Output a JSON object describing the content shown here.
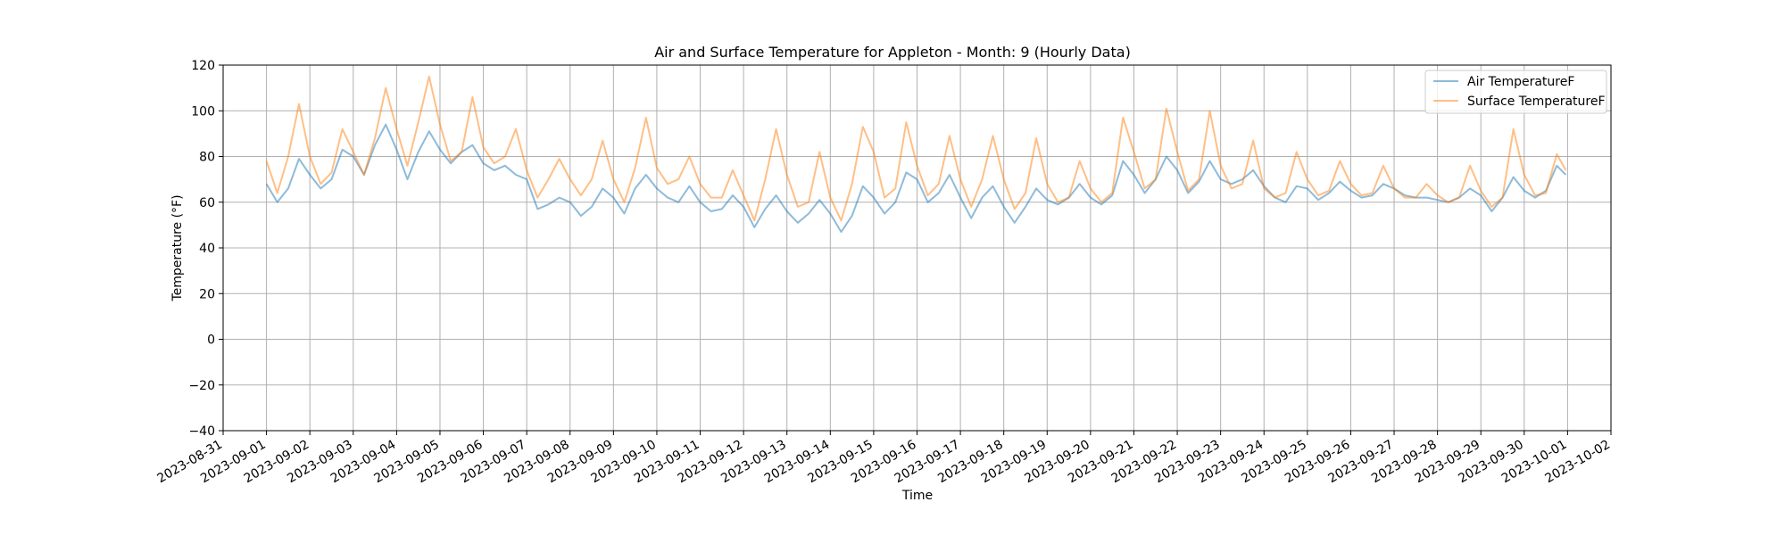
{
  "chart_data": {
    "type": "line",
    "title": "Air and Surface Temperature for Appleton - Month: 9 (Hourly Data)",
    "xlabel": "Time",
    "ylabel": "Temperature (°F)",
    "ylim": [
      -40,
      120
    ],
    "xlim": [
      "2023-08-31",
      "2023-10-02"
    ],
    "x_tick_labels": [
      "2023-08-31",
      "2023-09-01",
      "2023-09-02",
      "2023-09-03",
      "2023-09-04",
      "2023-09-05",
      "2023-09-06",
      "2023-09-07",
      "2023-09-08",
      "2023-09-09",
      "2023-09-10",
      "2023-09-11",
      "2023-09-12",
      "2023-09-13",
      "2023-09-14",
      "2023-09-15",
      "2023-09-16",
      "2023-09-17",
      "2023-09-18",
      "2023-09-19",
      "2023-09-20",
      "2023-09-21",
      "2023-09-22",
      "2023-09-23",
      "2023-09-24",
      "2023-09-25",
      "2023-09-26",
      "2023-09-27",
      "2023-09-28",
      "2023-09-29",
      "2023-09-30",
      "2023-10-01",
      "2023-10-02"
    ],
    "y_ticks": [
      -40,
      -20,
      0,
      20,
      40,
      60,
      80,
      100,
      120
    ],
    "grid": true,
    "legend_position": "top-right",
    "x": [
      "2023-09-01 00:00",
      "2023-09-01 06:00",
      "2023-09-01 12:00",
      "2023-09-01 18:00",
      "2023-09-02 00:00",
      "2023-09-02 06:00",
      "2023-09-02 12:00",
      "2023-09-02 18:00",
      "2023-09-03 00:00",
      "2023-09-03 06:00",
      "2023-09-03 12:00",
      "2023-09-03 18:00",
      "2023-09-04 00:00",
      "2023-09-04 06:00",
      "2023-09-04 12:00",
      "2023-09-04 18:00",
      "2023-09-05 00:00",
      "2023-09-05 06:00",
      "2023-09-05 12:00",
      "2023-09-05 18:00",
      "2023-09-06 00:00",
      "2023-09-06 06:00",
      "2023-09-06 12:00",
      "2023-09-06 18:00",
      "2023-09-07 00:00",
      "2023-09-07 06:00",
      "2023-09-07 12:00",
      "2023-09-07 18:00",
      "2023-09-08 00:00",
      "2023-09-08 06:00",
      "2023-09-08 12:00",
      "2023-09-08 18:00",
      "2023-09-09 00:00",
      "2023-09-09 06:00",
      "2023-09-09 12:00",
      "2023-09-09 18:00",
      "2023-09-10 00:00",
      "2023-09-10 06:00",
      "2023-09-10 12:00",
      "2023-09-10 18:00",
      "2023-09-11 00:00",
      "2023-09-11 06:00",
      "2023-09-11 12:00",
      "2023-09-11 18:00",
      "2023-09-12 00:00",
      "2023-09-12 06:00",
      "2023-09-12 12:00",
      "2023-09-12 18:00",
      "2023-09-13 00:00",
      "2023-09-13 06:00",
      "2023-09-13 12:00",
      "2023-09-13 18:00",
      "2023-09-14 00:00",
      "2023-09-14 06:00",
      "2023-09-14 12:00",
      "2023-09-14 18:00",
      "2023-09-15 00:00",
      "2023-09-15 06:00",
      "2023-09-15 12:00",
      "2023-09-15 18:00",
      "2023-09-16 00:00",
      "2023-09-16 06:00",
      "2023-09-16 12:00",
      "2023-09-16 18:00",
      "2023-09-17 00:00",
      "2023-09-17 06:00",
      "2023-09-17 12:00",
      "2023-09-17 18:00",
      "2023-09-18 00:00",
      "2023-09-18 06:00",
      "2023-09-18 12:00",
      "2023-09-18 18:00",
      "2023-09-19 00:00",
      "2023-09-19 06:00",
      "2023-09-19 12:00",
      "2023-09-19 18:00",
      "2023-09-20 00:00",
      "2023-09-20 06:00",
      "2023-09-20 12:00",
      "2023-09-20 18:00",
      "2023-09-21 00:00",
      "2023-09-21 06:00",
      "2023-09-21 12:00",
      "2023-09-21 18:00",
      "2023-09-22 00:00",
      "2023-09-22 06:00",
      "2023-09-22 12:00",
      "2023-09-22 18:00",
      "2023-09-23 00:00",
      "2023-09-23 06:00",
      "2023-09-23 12:00",
      "2023-09-23 18:00",
      "2023-09-24 00:00",
      "2023-09-24 06:00",
      "2023-09-24 12:00",
      "2023-09-24 18:00",
      "2023-09-25 00:00",
      "2023-09-25 06:00",
      "2023-09-25 12:00",
      "2023-09-25 18:00",
      "2023-09-26 00:00",
      "2023-09-26 06:00",
      "2023-09-26 12:00",
      "2023-09-26 18:00",
      "2023-09-27 00:00",
      "2023-09-27 06:00",
      "2023-09-27 12:00",
      "2023-09-27 18:00",
      "2023-09-28 00:00",
      "2023-09-28 06:00",
      "2023-09-28 12:00",
      "2023-09-28 18:00",
      "2023-09-29 00:00",
      "2023-09-29 06:00",
      "2023-09-29 12:00",
      "2023-09-29 18:00",
      "2023-09-30 00:00",
      "2023-09-30 06:00",
      "2023-09-30 12:00",
      "2023-09-30 18:00",
      "2023-09-30 23:00"
    ],
    "series": [
      {
        "name": "Air TemperatureF",
        "color": "#1f77b4",
        "values": [
          68,
          60,
          66,
          79,
          72,
          66,
          70,
          83,
          80,
          72,
          85,
          94,
          83,
          70,
          82,
          91,
          83,
          77,
          82,
          85,
          77,
          74,
          76,
          72,
          70,
          57,
          59,
          62,
          60,
          54,
          58,
          66,
          62,
          55,
          66,
          72,
          66,
          62,
          60,
          67,
          60,
          56,
          57,
          63,
          58,
          49,
          57,
          63,
          56,
          51,
          55,
          61,
          55,
          47,
          54,
          67,
          62,
          55,
          60,
          73,
          70,
          60,
          64,
          72,
          62,
          53,
          62,
          67,
          58,
          51,
          58,
          66,
          61,
          59,
          62,
          68,
          62,
          59,
          63,
          78,
          72,
          64,
          70,
          80,
          74,
          64,
          69,
          78,
          70,
          68,
          70,
          74,
          67,
          62,
          60,
          67,
          66,
          61,
          64,
          69,
          65,
          62,
          63,
          68,
          66,
          63,
          62,
          62,
          61,
          60,
          62,
          66,
          63,
          56,
          62,
          71,
          65,
          62,
          65,
          76,
          72
        ]
      },
      {
        "name": "Surface TemperatureF",
        "color": "#ff7f0e",
        "values": [
          78,
          64,
          80,
          103,
          80,
          68,
          73,
          92,
          82,
          72,
          88,
          110,
          92,
          76,
          95,
          115,
          94,
          78,
          82,
          106,
          84,
          77,
          80,
          92,
          74,
          62,
          70,
          79,
          70,
          63,
          70,
          87,
          70,
          60,
          75,
          97,
          75,
          68,
          70,
          80,
          68,
          62,
          62,
          74,
          63,
          52,
          70,
          92,
          72,
          58,
          60,
          82,
          62,
          52,
          68,
          93,
          82,
          62,
          66,
          95,
          76,
          63,
          68,
          89,
          70,
          58,
          70,
          89,
          70,
          57,
          64,
          88,
          68,
          60,
          62,
          78,
          66,
          60,
          64,
          97,
          82,
          66,
          70,
          101,
          82,
          65,
          70,
          100,
          76,
          66,
          68,
          87,
          66,
          62,
          64,
          82,
          70,
          63,
          65,
          78,
          68,
          63,
          64,
          76,
          66,
          62,
          62,
          68,
          63,
          60,
          62,
          76,
          65,
          58,
          62,
          92,
          72,
          63,
          64,
          81,
          74
        ]
      }
    ]
  }
}
